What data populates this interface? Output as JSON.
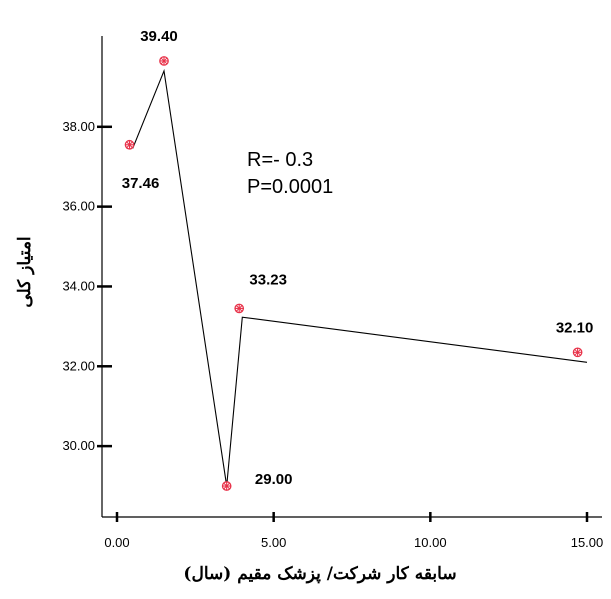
{
  "chart_data": {
    "type": "line",
    "title": "",
    "xlabel": "سابقه کار شرکت/ پزشک مقیم (سال)",
    "ylabel": "امتیاز کلی",
    "xlim": [
      0,
      15
    ],
    "ylim": [
      28.6,
      40.3
    ],
    "x_ticks": [
      0,
      5,
      10,
      15
    ],
    "x_tick_labels": [
      "0.00",
      "5.00",
      "10.00",
      "15.00"
    ],
    "y_ticks": [
      30,
      32,
      34,
      36,
      38
    ],
    "y_tick_labels": [
      "30.00",
      "32.00",
      "34.00",
      "36.00",
      "38.00"
    ],
    "grid": false,
    "line": {
      "x": [
        0.5,
        1.5,
        3.5,
        4.0,
        15.0
      ],
      "y": [
        37.46,
        39.4,
        29.0,
        33.23,
        32.1
      ]
    },
    "points": [
      {
        "x": 0.4,
        "y": 37.55,
        "label": "37.46"
      },
      {
        "x": 1.5,
        "y": 39.65,
        "label": "39.40"
      },
      {
        "x": 3.5,
        "y": 29.0,
        "label": "29.00"
      },
      {
        "x": 3.9,
        "y": 33.45,
        "label": "33.23"
      },
      {
        "x": 14.7,
        "y": 32.35,
        "label": "32.10"
      }
    ],
    "annotations": [
      "R=- 0.3",
      "P=0.0001"
    ],
    "marker_color": "#e8334a",
    "line_color": "#000000"
  }
}
